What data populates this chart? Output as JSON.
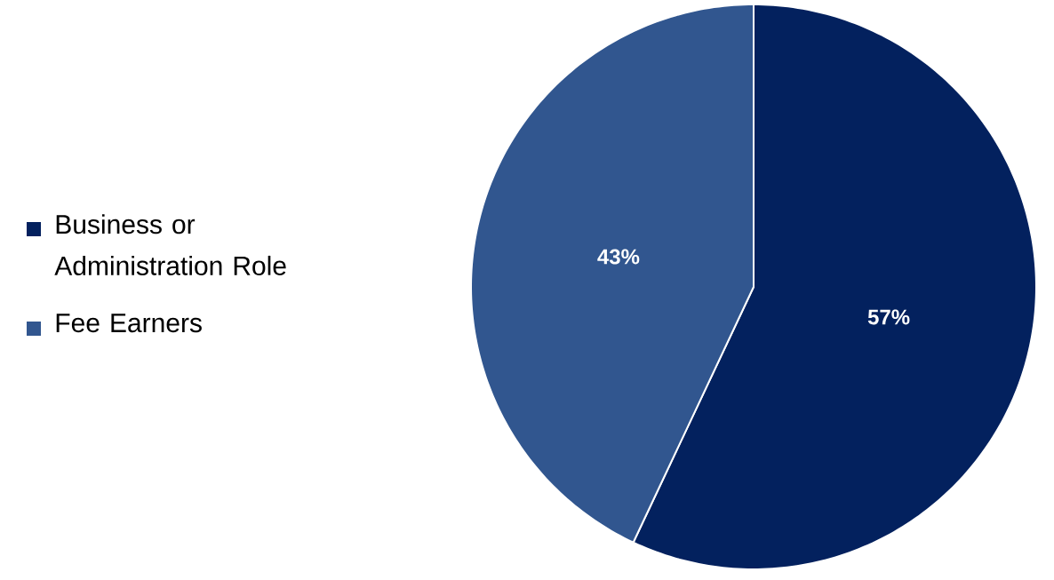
{
  "chart_data": {
    "type": "pie",
    "categories": [
      "Business or Administration Role",
      "Fee Earners"
    ],
    "values": [
      57,
      43
    ],
    "colors": [
      "#03215e",
      "#31568f"
    ],
    "value_labels": [
      "57%",
      "43%"
    ],
    "legend": "left"
  }
}
